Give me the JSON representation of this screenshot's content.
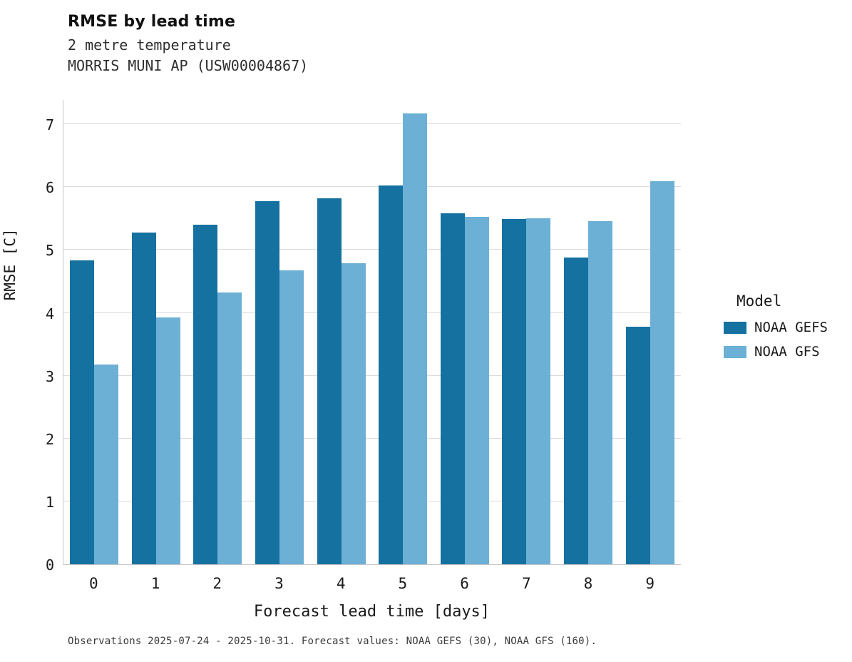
{
  "header": {
    "title": "RMSE by lead time",
    "subtitle1": "2 metre temperature",
    "subtitle2": "MORRIS MUNI AP (USW00004867)"
  },
  "colors": {
    "gefs": "#15719f",
    "gfs": "#6cb0d6",
    "grid": "#dcdcdc",
    "axis": "#c6c6c6"
  },
  "legend": {
    "title": "Model",
    "items": [
      {
        "label": "NOAA GEFS",
        "color": "#15719f"
      },
      {
        "label": "NOAA GFS",
        "color": "#6cb0d6"
      }
    ]
  },
  "caption": "Observations 2025-07-24 - 2025-10-31. Forecast values: NOAA GEFS (30), NOAA GFS (160).",
  "chart_data": {
    "type": "bar",
    "title": "RMSE by lead time",
    "subtitle": [
      "2 metre temperature",
      "MORRIS MUNI AP (USW00004867)"
    ],
    "xlabel": "Forecast lead time [days]",
    "ylabel": "RMSE [C]",
    "categories": [
      0,
      1,
      2,
      3,
      4,
      5,
      6,
      7,
      8,
      9
    ],
    "series": [
      {
        "name": "NOAA GEFS",
        "color": "#15719f",
        "values": [
          4.83,
          5.28,
          5.4,
          5.78,
          5.82,
          6.03,
          5.58,
          5.49,
          4.88,
          3.78
        ]
      },
      {
        "name": "NOAA GFS",
        "color": "#6cb0d6",
        "values": [
          3.18,
          3.93,
          4.33,
          4.68,
          4.79,
          7.17,
          5.53,
          5.51,
          5.46,
          6.1
        ]
      }
    ],
    "ylim": [
      0,
      7.4
    ],
    "yticks": [
      0,
      1,
      2,
      3,
      4,
      5,
      6,
      7
    ],
    "grid": true,
    "legend_position": "right"
  }
}
